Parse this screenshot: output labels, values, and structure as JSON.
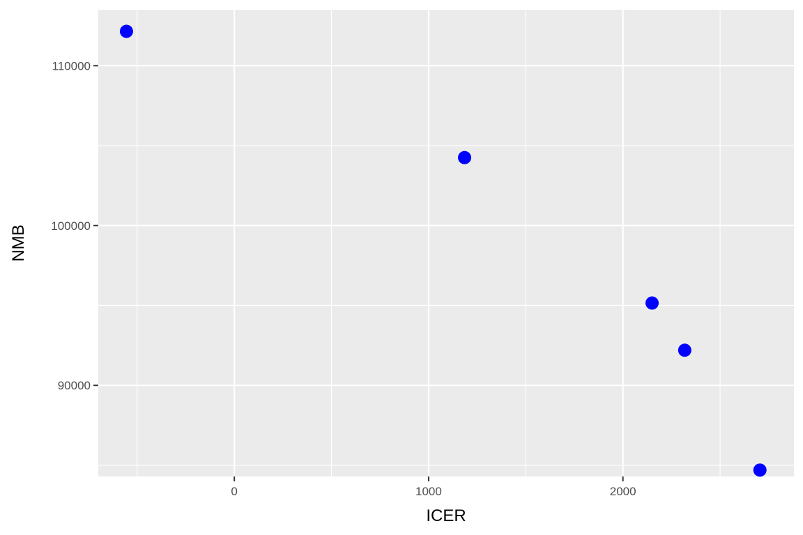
{
  "chart_data": {
    "type": "scatter",
    "title": "",
    "xlabel": "ICER",
    "ylabel": "NMB",
    "xlim": [
      -700,
      2880
    ],
    "ylim": [
      84300,
      113500
    ],
    "x_ticks": [
      0,
      1000,
      2000
    ],
    "x_tick_labels": [
      "0",
      "1000",
      "2000"
    ],
    "x_minor_ticks": [
      -500,
      500,
      1500,
      2500
    ],
    "y_ticks": [
      90000,
      100000,
      110000
    ],
    "y_tick_labels": [
      "90000",
      "100000",
      "110000"
    ],
    "y_minor_ticks": [
      85000,
      95000,
      105000
    ],
    "grid": true,
    "point_color": "#0000ff",
    "panel_color": "#ebebeb",
    "grid_color": "#ffffff",
    "points": [
      {
        "x": -555,
        "y": 112150
      },
      {
        "x": 1185,
        "y": 104250
      },
      {
        "x": 2150,
        "y": 95150
      },
      {
        "x": 2318,
        "y": 92200
      },
      {
        "x": 2705,
        "y": 84700
      }
    ]
  }
}
